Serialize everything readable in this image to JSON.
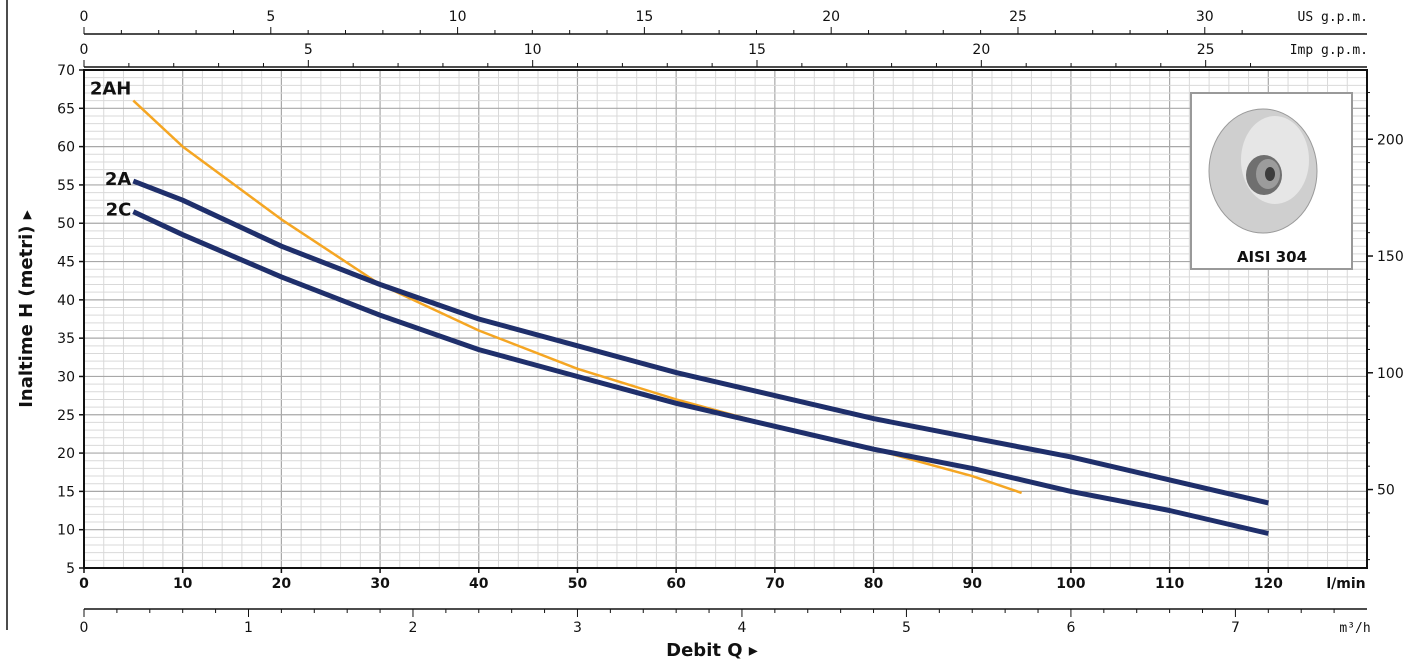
{
  "chart_data": {
    "type": "line",
    "title": "",
    "xlabel": "Debit Q",
    "ylabel": "Inaltime H (metri)",
    "x_unit": "l/min",
    "xlim": [
      0,
      130
    ],
    "ylim": [
      5,
      70
    ],
    "x_ticks": [
      "0",
      "10",
      "20",
      "30",
      "40",
      "50",
      "60",
      "70",
      "80",
      "90",
      "100",
      "110",
      "120"
    ],
    "y_ticks": [
      "5",
      "10",
      "15",
      "20",
      "25",
      "30",
      "35",
      "40",
      "45",
      "50",
      "55",
      "60",
      "65",
      "70"
    ],
    "grid": true,
    "arrow_glyph": "▸",
    "series": [
      {
        "name": "2AH",
        "color": "#f5a623",
        "points": [
          [
            5,
            66
          ],
          [
            10,
            60
          ],
          [
            20,
            50.5
          ],
          [
            30,
            42
          ],
          [
            40,
            36
          ],
          [
            50,
            31
          ],
          [
            60,
            27
          ],
          [
            70,
            23.5
          ],
          [
            80,
            20.5
          ],
          [
            90,
            17
          ],
          [
            95,
            14.8
          ]
        ]
      },
      {
        "name": "2A",
        "color": "#1f2f6b",
        "points": [
          [
            5,
            55.5
          ],
          [
            10,
            53
          ],
          [
            20,
            47
          ],
          [
            30,
            42
          ],
          [
            40,
            37.5
          ],
          [
            50,
            34
          ],
          [
            60,
            30.5
          ],
          [
            70,
            27.5
          ],
          [
            80,
            24.5
          ],
          [
            90,
            22
          ],
          [
            100,
            19.5
          ],
          [
            110,
            16.5
          ],
          [
            120,
            13.5
          ]
        ]
      },
      {
        "name": "2C",
        "color": "#1f2f6b",
        "points": [
          [
            5,
            51.5
          ],
          [
            10,
            48.5
          ],
          [
            20,
            43
          ],
          [
            30,
            38
          ],
          [
            40,
            33.5
          ],
          [
            50,
            30
          ],
          [
            60,
            26.5
          ],
          [
            70,
            23.5
          ],
          [
            80,
            20.5
          ],
          [
            90,
            18
          ],
          [
            100,
            15
          ],
          [
            110,
            12.5
          ],
          [
            120,
            9.5
          ]
        ]
      }
    ],
    "secondary_axes": {
      "top_us": {
        "label": "US g.p.m.",
        "per_lpm": 0.264172,
        "ticks": [
          "0",
          "5",
          "10",
          "15",
          "20",
          "25",
          "30"
        ]
      },
      "top_imp": {
        "label": "Imp g.p.m.",
        "per_lpm": 0.219969,
        "ticks": [
          "0",
          "5",
          "10",
          "15",
          "20",
          "25"
        ]
      },
      "bottom_m3h": {
        "label": "m³/h",
        "per_lpm": 0.06,
        "ticks": [
          "0",
          "1",
          "2",
          "3",
          "4",
          "5",
          "6",
          "7"
        ]
      },
      "right_ft": {
        "per_m": 3.28084,
        "ticks": [
          "50",
          "100",
          "150",
          "200"
        ]
      }
    }
  },
  "inset": {
    "caption": "AISI 304"
  }
}
